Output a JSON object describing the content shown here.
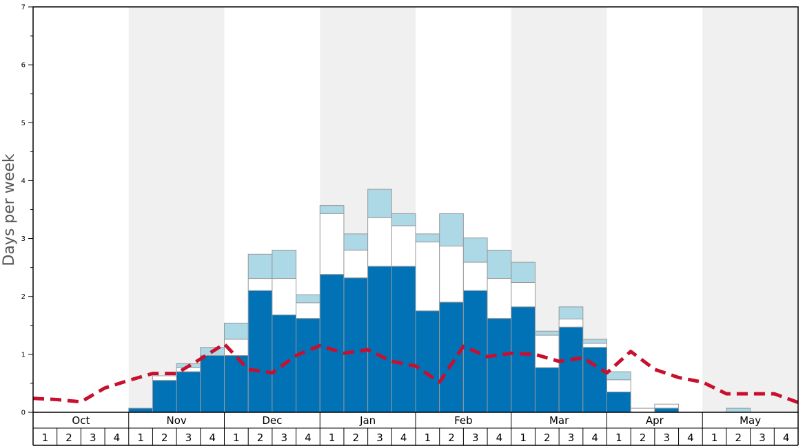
{
  "chart_data": {
    "type": "bar",
    "stacked": true,
    "ylabel": "Days per week",
    "ylim": [
      0,
      7
    ],
    "yticks": [
      "0",
      "1",
      "2",
      "3",
      "4",
      "5",
      "6",
      "7"
    ],
    "months": [
      "Oct",
      "Nov",
      "Dec",
      "Jan",
      "Feb",
      "Mar",
      "Apr",
      "May"
    ],
    "weeks_per_month": [
      "1",
      "2",
      "3",
      "4"
    ],
    "shaded_months": [
      "Nov",
      "Jan",
      "Mar",
      "May"
    ],
    "colors": {
      "dark": "#0072b5",
      "mid": "#ffffff",
      "light": "#add8e6",
      "line": "#c8102e",
      "shade": "#f0f0f0",
      "bar_stroke": "#999999"
    },
    "series_dark": [
      0,
      0,
      0,
      0,
      0.07,
      0.55,
      0.7,
      0.98,
      0.98,
      2.1,
      1.68,
      1.62,
      2.38,
      2.32,
      2.52,
      2.52,
      1.75,
      1.9,
      2.1,
      1.62,
      1.82,
      0.77,
      1.47,
      1.12,
      0.35,
      0,
      0.07,
      0,
      0,
      0,
      0,
      0
    ],
    "series_mid": [
      0,
      0,
      0,
      0,
      0.07,
      0.63,
      0.77,
      0.98,
      1.26,
      2.31,
      2.31,
      1.89,
      3.43,
      2.8,
      3.36,
      3.22,
      2.94,
      2.87,
      2.59,
      2.31,
      2.24,
      1.33,
      1.61,
      1.19,
      0.56,
      0.07,
      0.14,
      0,
      0,
      0,
      0,
      0
    ],
    "series_total": [
      0,
      0,
      0,
      0,
      0.07,
      0.63,
      0.84,
      1.12,
      1.54,
      2.73,
      2.8,
      2.03,
      3.57,
      3.08,
      3.85,
      3.43,
      3.08,
      3.43,
      3.01,
      2.8,
      2.59,
      1.4,
      1.82,
      1.26,
      0.7,
      0.07,
      0.14,
      0,
      0,
      0.07,
      0,
      0
    ],
    "avg_line": [
      0.24,
      0.22,
      0.18,
      0.42,
      0.55,
      0.67,
      0.67,
      0.92,
      1.18,
      0.74,
      0.68,
      0.98,
      1.15,
      1.02,
      1.08,
      0.88,
      0.8,
      0.52,
      1.14,
      0.96,
      1.02,
      1.0,
      0.88,
      0.94,
      0.68,
      1.05,
      0.74,
      0.6,
      0.52,
      0.32,
      0.32,
      0.32,
      0.17
    ]
  }
}
